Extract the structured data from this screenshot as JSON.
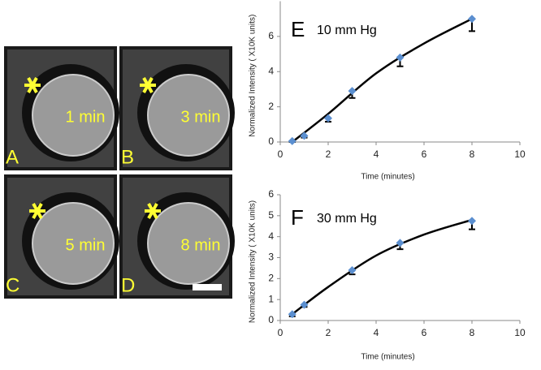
{
  "image_panels": [
    {
      "letter": "A",
      "label": "1 min"
    },
    {
      "letter": "B",
      "label": "3 min"
    },
    {
      "letter": "C",
      "label": "5 min"
    },
    {
      "letter": "D",
      "label": "8 min"
    }
  ],
  "chart_data": [
    {
      "type": "scatter",
      "panel": "E",
      "title": "10 mm Hg",
      "x_label": "Time (minutes)",
      "y_label": "Normalized Intensity ( X10K units)",
      "x": [
        0.5,
        1,
        2,
        3,
        5,
        8
      ],
      "values": [
        0.05,
        0.35,
        1.35,
        2.9,
        4.8,
        7.0
      ],
      "errors": [
        0.05,
        0.1,
        0.2,
        0.4,
        0.5,
        0.7
      ],
      "color": "#5b8fd0",
      "trendline": {
        "x": [
          0.5,
          2,
          4,
          6,
          8
        ],
        "values": [
          0,
          1.6,
          3.9,
          5.6,
          7.0
        ]
      },
      "xlim": [
        0,
        10
      ],
      "xticks": [
        0,
        2,
        4,
        6,
        8,
        10
      ],
      "ylim": [
        0,
        8
      ],
      "yticks": [
        0,
        2,
        4,
        6
      ]
    },
    {
      "type": "scatter",
      "panel": "F",
      "title": "30 mm Hg",
      "x_label": "Time (minutes)",
      "y_label": "Normalized Intensity ( X10K units)",
      "x": [
        0.5,
        1,
        3,
        5,
        8
      ],
      "values": [
        0.3,
        0.75,
        2.4,
        3.7,
        4.75
      ],
      "errors": [
        0.1,
        0.1,
        0.2,
        0.3,
        0.4
      ],
      "color": "#5b8fd0",
      "trendline": {
        "x": [
          0.5,
          2,
          4,
          6,
          8
        ],
        "values": [
          0.3,
          1.6,
          3.1,
          4.1,
          4.8
        ]
      },
      "xlim": [
        0,
        10
      ],
      "xticks": [
        0,
        2,
        4,
        6,
        8,
        10
      ],
      "ylim": [
        0,
        6
      ],
      "yticks": [
        0,
        1,
        2,
        3,
        4,
        5,
        6
      ]
    }
  ]
}
